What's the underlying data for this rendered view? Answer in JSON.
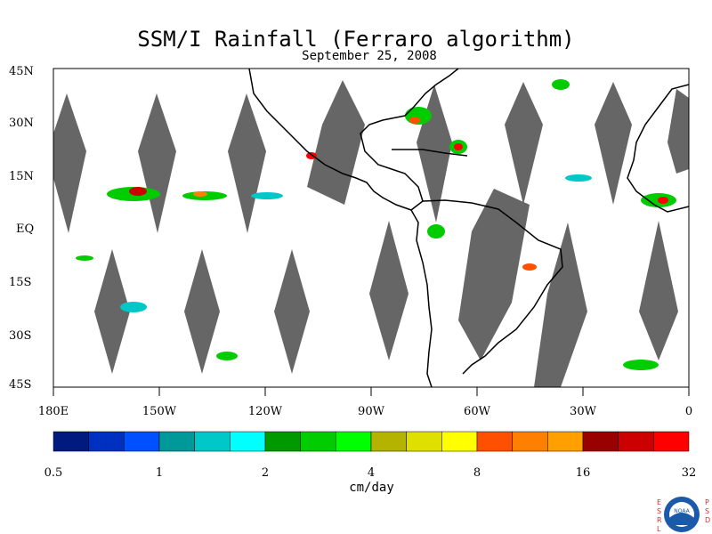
{
  "title": "SSM/I Rainfall (Ferraro algorithm)",
  "date": "September 25, 2008",
  "lat_labels": [
    "45N",
    "30N",
    "15N",
    "EQ",
    "15S",
    "30S",
    "45S"
  ],
  "lon_labels": [
    "180E",
    "150W",
    "120W",
    "90W",
    "60W",
    "30W",
    "0"
  ],
  "colorbar": {
    "unit": "cm/day",
    "tick_labels": [
      "0.5",
      "1",
      "2",
      "4",
      "8",
      "16",
      "32"
    ],
    "colors": [
      "#001a80",
      "#0030c0",
      "#0050ff",
      "#00999a",
      "#00c8c8",
      "#00ffff",
      "#009900",
      "#00cc00",
      "#00ff00",
      "#b3b300",
      "#e0e000",
      "#ffff00",
      "#ff5000",
      "#ff8000",
      "#ffa000",
      "#990000",
      "#cc0000",
      "#ff0000"
    ]
  },
  "map": {
    "swath_gap_color": "#666666",
    "coastline_color": "#000000"
  },
  "logo": {
    "left_text": "ESRL",
    "right_text": "PSD",
    "emblem": "NOAA"
  }
}
